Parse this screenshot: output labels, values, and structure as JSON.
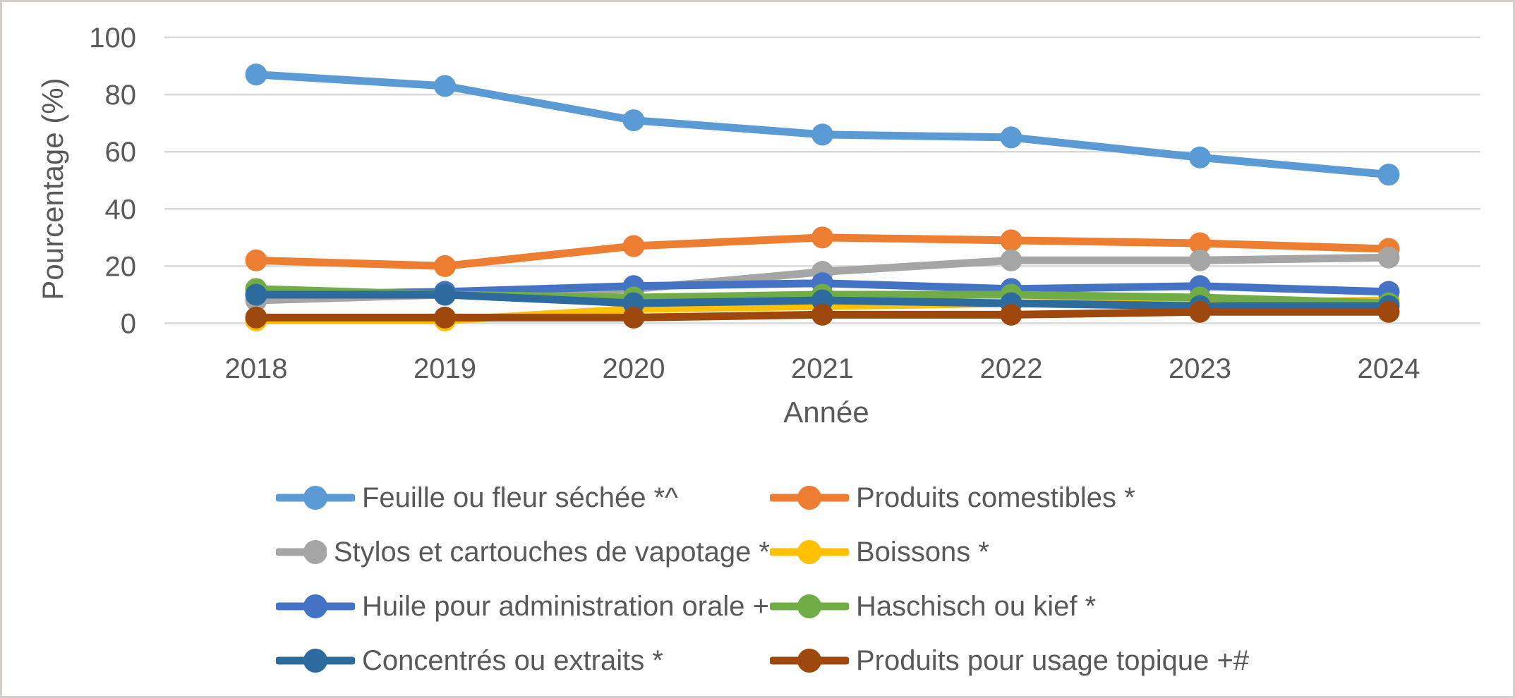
{
  "chart_data": {
    "type": "line",
    "title": "",
    "xlabel": "Année",
    "ylabel": "Pourcentage (%)",
    "x": [
      2018,
      2019,
      2020,
      2021,
      2022,
      2023,
      2024
    ],
    "ylim": [
      0,
      100
    ],
    "yticks": [
      100,
      80,
      60,
      40,
      20,
      0
    ],
    "grid": "horizontal",
    "legend_position": "bottom",
    "legend_columns": 2,
    "marker": "circle",
    "series": [
      {
        "name": "Feuille ou fleur séchée *^",
        "color": "#5B9BD5",
        "values": [
          87,
          83,
          71,
          66,
          65,
          58,
          52
        ]
      },
      {
        "name": "Produits comestibles *",
        "color": "#ED7D31",
        "values": [
          22,
          20,
          27,
          30,
          29,
          28,
          26
        ]
      },
      {
        "name": "Stylos et cartouches de vapotage *",
        "color": "#A5A5A5",
        "values": [
          8,
          10,
          12,
          18,
          22,
          22,
          23
        ]
      },
      {
        "name": "Boissons *",
        "color": "#FFC000",
        "values": [
          1,
          1,
          5,
          6,
          7,
          7,
          8
        ]
      },
      {
        "name": "Huile pour administration orale +",
        "color": "#4472C4",
        "values": [
          10,
          11,
          13,
          14,
          12,
          13,
          11
        ]
      },
      {
        "name": "Haschisch ou kief *",
        "color": "#70AD47",
        "values": [
          12,
          10,
          9,
          10,
          10,
          9,
          7
        ]
      },
      {
        "name": "Concentrés ou extraits *",
        "color": "#2D6B9E",
        "values": [
          10,
          10,
          7,
          8,
          7,
          6,
          6
        ]
      },
      {
        "name": "Produits pour usage topique +#",
        "color": "#9E480E",
        "values": [
          2,
          2,
          2,
          3,
          3,
          4,
          4
        ]
      }
    ]
  },
  "colors": {
    "text": "#595959",
    "gridline": "#D9D9D9",
    "background": "#FFFFFF",
    "border": "#D2CFCD"
  }
}
